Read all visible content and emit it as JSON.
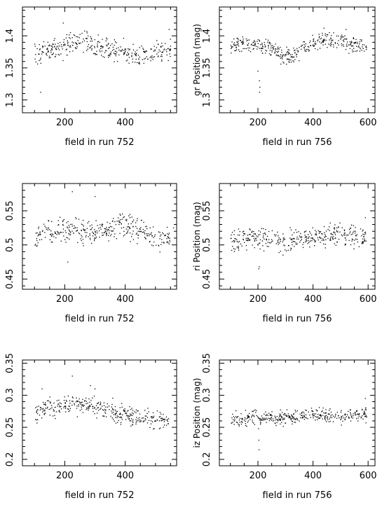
{
  "chart_data": [
    {
      "type": "scatter",
      "title": "",
      "xlabel": "field in run 752",
      "ylabel": "",
      "xlim": [
        60,
        570
      ],
      "ylim": [
        1.28,
        1.445
      ],
      "xticks": [
        200,
        400
      ],
      "yticks": [
        1.3,
        1.35,
        1.4
      ],
      "ytick_labels": [
        "1.3",
        "1.35",
        "1.4"
      ],
      "xtick_labels": [
        "200",
        "400"
      ],
      "points": {
        "x_range": [
          100,
          550
        ],
        "n": 360,
        "base": [
          [
            100,
            1.372
          ],
          [
            200,
            1.385
          ],
          [
            250,
            1.393
          ],
          [
            300,
            1.385
          ],
          [
            400,
            1.375
          ],
          [
            450,
            1.37
          ],
          [
            500,
            1.373
          ],
          [
            550,
            1.38
          ]
        ],
        "spread": 0.016,
        "outliers": [
          [
            120,
            1.312
          ],
          [
            195,
            1.42
          ],
          [
            545,
            1.41
          ]
        ]
      }
    },
    {
      "type": "scatter",
      "title": "",
      "xlabel": "field in run 756",
      "ylabel": "gr Position  (mag)",
      "xlim": [
        60,
        625
      ],
      "ylim": [
        1.28,
        1.445
      ],
      "xticks": [
        200,
        400,
        600
      ],
      "yticks": [
        1.3,
        1.35,
        1.4
      ],
      "ytick_labels": [
        "1.3",
        "1.35",
        "1.4"
      ],
      "xtick_labels": [
        "200",
        "400",
        "600"
      ],
      "points": {
        "x_range": [
          100,
          595
        ],
        "n": 380,
        "base": [
          [
            100,
            1.385
          ],
          [
            200,
            1.385
          ],
          [
            250,
            1.38
          ],
          [
            300,
            1.365
          ],
          [
            350,
            1.375
          ],
          [
            400,
            1.39
          ],
          [
            450,
            1.395
          ],
          [
            500,
            1.39
          ],
          [
            550,
            1.385
          ],
          [
            595,
            1.385
          ]
        ],
        "spread": 0.012,
        "outliers": [
          [
            200,
            1.345
          ],
          [
            205,
            1.33
          ],
          [
            207,
            1.32
          ],
          [
            206,
            1.312
          ],
          [
            440,
            1.412
          ],
          [
            520,
            1.41
          ]
        ]
      }
    },
    {
      "type": "scatter",
      "title": "",
      "xlabel": "field in run 752",
      "ylabel": "",
      "xlim": [
        60,
        570
      ],
      "ylim": [
        0.435,
        0.59
      ],
      "xticks": [
        200,
        400
      ],
      "yticks": [
        0.45,
        0.5,
        0.55
      ],
      "ytick_labels": [
        "0.45",
        "0.5",
        "0.55"
      ],
      "xtick_labels": [
        "200",
        "400"
      ],
      "points": {
        "x_range": [
          100,
          550
        ],
        "n": 360,
        "base": [
          [
            100,
            0.51
          ],
          [
            150,
            0.52
          ],
          [
            200,
            0.522
          ],
          [
            300,
            0.518
          ],
          [
            400,
            0.53
          ],
          [
            450,
            0.52
          ],
          [
            500,
            0.51
          ],
          [
            550,
            0.51
          ]
        ],
        "spread": 0.016,
        "outliers": [
          [
            225,
            0.578
          ],
          [
            300,
            0.571
          ],
          [
            210,
            0.475
          ],
          [
            560,
            0.525
          ]
        ]
      }
    },
    {
      "type": "scatter",
      "title": "",
      "xlabel": "field in run 756",
      "ylabel": "ri Position  (mag)",
      "xlim": [
        60,
        625
      ],
      "ylim": [
        0.435,
        0.59
      ],
      "xticks": [
        200,
        400,
        600
      ],
      "yticks": [
        0.45,
        0.5,
        0.55
      ],
      "ytick_labels": [
        "0.45",
        "0.5",
        "0.55"
      ],
      "xtick_labels": [
        "200",
        "400",
        "600"
      ],
      "points": {
        "x_range": [
          100,
          595
        ],
        "n": 380,
        "base": [
          [
            100,
            0.505
          ],
          [
            200,
            0.51
          ],
          [
            300,
            0.505
          ],
          [
            400,
            0.512
          ],
          [
            500,
            0.515
          ],
          [
            595,
            0.51
          ]
        ],
        "spread": 0.014,
        "outliers": [
          [
            203,
            0.465
          ],
          [
            205,
            0.468
          ],
          [
            590,
            0.54
          ]
        ]
      }
    },
    {
      "type": "scatter",
      "title": "",
      "xlabel": "field in run 752",
      "ylabel": "",
      "xlim": [
        60,
        570
      ],
      "ylim": [
        0.19,
        0.355
      ],
      "xticks": [
        200,
        400
      ],
      "yticks": [
        0.2,
        0.25,
        0.3,
        0.35
      ],
      "ytick_labels": [
        "0.2",
        "0.25",
        "0.3",
        "0.35"
      ],
      "xtick_labels": [
        "200",
        "400"
      ],
      "points": {
        "x_range": [
          100,
          550
        ],
        "n": 360,
        "base": [
          [
            100,
            0.275
          ],
          [
            200,
            0.285
          ],
          [
            250,
            0.285
          ],
          [
            300,
            0.28
          ],
          [
            350,
            0.275
          ],
          [
            400,
            0.27
          ],
          [
            450,
            0.265
          ],
          [
            500,
            0.262
          ],
          [
            550,
            0.26
          ]
        ],
        "spread": 0.014,
        "outliers": [
          [
            125,
            0.31
          ],
          [
            225,
            0.33
          ],
          [
            285,
            0.315
          ],
          [
            300,
            0.31
          ]
        ]
      }
    },
    {
      "type": "scatter",
      "title": "",
      "xlabel": "field in run 756",
      "ylabel": "iz Position  (mag)",
      "xlim": [
        60,
        625
      ],
      "ylim": [
        0.19,
        0.355
      ],
      "xticks": [
        200,
        400,
        600
      ],
      "yticks": [
        0.2,
        0.25,
        0.3,
        0.35
      ],
      "ytick_labels": [
        "0.2",
        "0.25",
        "0.3",
        "0.35"
      ],
      "xtick_labels": [
        "200",
        "400",
        "600"
      ],
      "points": {
        "x_range": [
          100,
          595
        ],
        "n": 380,
        "base": [
          [
            100,
            0.262
          ],
          [
            200,
            0.265
          ],
          [
            300,
            0.265
          ],
          [
            400,
            0.27
          ],
          [
            500,
            0.268
          ],
          [
            595,
            0.27
          ]
        ],
        "spread": 0.01,
        "outliers": [
          [
            203,
            0.23
          ],
          [
            204,
            0.215
          ],
          [
            202,
            0.248
          ],
          [
            590,
            0.295
          ]
        ]
      }
    }
  ]
}
